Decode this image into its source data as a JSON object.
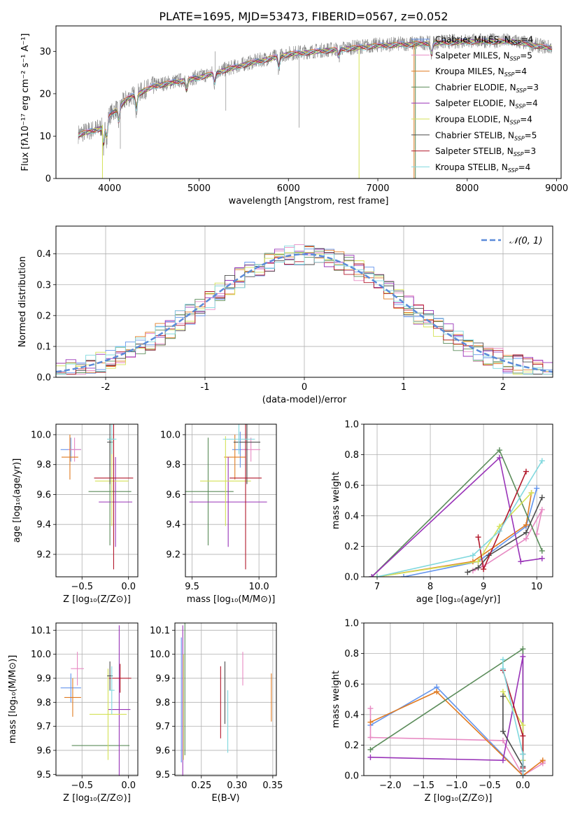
{
  "figure": {
    "title": "PLATE=1695, MJD=53473, FIBERID=0567, z=0.052"
  },
  "series_styles": [
    {
      "name": "Chabrier MILES, N$_{SSP}$=4",
      "color": "#6495ED"
    },
    {
      "name": "Salpeter MILES, N$_{SSP}$=5",
      "color": "#E78AC3"
    },
    {
      "name": "Kroupa MILES, N$_{SSP}$=4",
      "color": "#E07B22"
    },
    {
      "name": "Chabrier ELODIE, N$_{SSP}$=3",
      "color": "#5B8C5A"
    },
    {
      "name": "Salpeter ELODIE, N$_{SSP}$=4",
      "color": "#9933B8"
    },
    {
      "name": "Kroupa ELODIE, N$_{SSP}$=4",
      "color": "#D4E157"
    },
    {
      "name": "Chabrier STELIB, N$_{SSP}$=5",
      "color": "#4D4D4D"
    },
    {
      "name": "Salpeter STELIB, N$_{SSP}$=3",
      "color": "#B2182B"
    },
    {
      "name": "Kroupa STELIB, N$_{SSP}$=4",
      "color": "#7FD8DE"
    }
  ],
  "legend_labels": [
    "Chabrier MILES, N",
    "Salpeter MILES, N",
    "Kroupa MILES, N",
    "Chabrier ELODIE, N",
    "Salpeter ELODIE, N",
    "Kroupa ELODIE, N",
    "Chabrier STELIB, N",
    "Salpeter STELIB, N",
    "Kroupa STELIB, N"
  ],
  "legend_sub": "SSP",
  "legend_counts": [
    "=4",
    "=5",
    "=4",
    "=3",
    "=4",
    "=4",
    "=5",
    "=3",
    "=4"
  ],
  "chart_data": [
    {
      "id": "spectrum",
      "type": "line",
      "xlabel": "wavelength [Angstrom, rest frame]",
      "ylabel": "Flux [fλ10⁻¹⁷ erg cm⁻² s⁻¹ A⁻¹]",
      "xlim": [
        3400,
        9050
      ],
      "ylim": [
        0,
        36
      ],
      "xticks": [
        4000,
        5000,
        6000,
        7000,
        8000,
        9000
      ],
      "yticks": [
        0,
        10,
        20,
        30
      ],
      "legend": "top-right",
      "continuum_knots": {
        "x": [
          3650,
          3900,
          4000,
          4200,
          4500,
          5000,
          5500,
          6000,
          6500,
          7000,
          7500,
          8000,
          8500,
          8900
        ],
        "y": [
          10.5,
          12,
          15,
          19,
          22,
          24,
          27,
          29.5,
          30.5,
          31.5,
          32,
          32.5,
          32.5,
          31
        ]
      }
    },
    {
      "id": "residuals",
      "type": "line",
      "xlabel": "(data-model)/error",
      "ylabel": "Normed distribution",
      "xlim": [
        -2.5,
        2.5
      ],
      "ylim": [
        0,
        0.49
      ],
      "xticks": [
        -2,
        -1,
        0,
        1,
        2
      ],
      "yticks": [
        0.0,
        0.1,
        0.2,
        0.3,
        0.4
      ],
      "grid": true,
      "legend": "top-right",
      "legend_label": "𝒩(0, 1)",
      "reference_curve": "gaussian mean 0 sigma 1",
      "reference_color": "#5B8BD9"
    },
    {
      "id": "age_vs_Z",
      "type": "scatter",
      "xlabel": "Z [log₁₀(Z/Z⊙)]",
      "ylabel": "age [log₁₀(age/yr)]",
      "xlim": [
        -0.78,
        0.1
      ],
      "ylim": [
        9.05,
        10.07
      ],
      "xticks": [
        -0.5,
        0.0
      ],
      "xticklabels": [
        "−0.5",
        "0.0"
      ],
      "yticks": [
        9.2,
        9.4,
        9.6,
        9.8,
        10.0
      ],
      "grid": true,
      "points": [
        {
          "x": -0.62,
          "y": 9.9,
          "xerr": 0.11,
          "yerr": 0.08
        },
        {
          "x": -0.58,
          "y": 9.9,
          "xerr": 0.07,
          "yerr": 0.08
        },
        {
          "x": -0.63,
          "y": 9.85,
          "xerr": 0.09,
          "yerr": 0.15
        },
        {
          "x": -0.2,
          "y": 9.62,
          "xerr": 0.23,
          "yerr": 0.36
        },
        {
          "x": -0.14,
          "y": 9.55,
          "xerr": 0.18,
          "yerr": 0.3
        },
        {
          "x": -0.18,
          "y": 9.69,
          "xerr": 0.18,
          "yerr": 0.3
        },
        {
          "x": -0.2,
          "y": 9.95,
          "xerr": 0.03,
          "yerr": 0.28
        },
        {
          "x": -0.16,
          "y": 9.71,
          "xerr": 0.21,
          "yerr": 0.61
        },
        {
          "x": -0.18,
          "y": 9.97,
          "xerr": 0.05,
          "yerr": 0.1
        }
      ]
    },
    {
      "id": "age_vs_mass",
      "type": "scatter",
      "xlabel": "mass [log₁₀(M/M⊙)]",
      "ylabel": "",
      "xlim": [
        9.45,
        10.13
      ],
      "ylim": [
        9.05,
        10.07
      ],
      "xticks": [
        9.5,
        10.0
      ],
      "xticklabels": [
        "9.5",
        "10.0"
      ],
      "yticks": [
        9.2,
        9.4,
        9.6,
        9.8,
        10.0
      ],
      "grid": true,
      "points": [
        {
          "x": 9.86,
          "y": 9.9,
          "xerr": 0.06,
          "yerr": 0.12
        },
        {
          "x": 9.94,
          "y": 9.9,
          "xerr": 0.07,
          "yerr": 0.08
        },
        {
          "x": 9.82,
          "y": 9.85,
          "xerr": 0.08,
          "yerr": 0.15
        },
        {
          "x": 9.62,
          "y": 9.62,
          "xerr": 0.19,
          "yerr": 0.36
        },
        {
          "x": 9.77,
          "y": 9.55,
          "xerr": 0.29,
          "yerr": 0.3
        },
        {
          "x": 9.75,
          "y": 9.69,
          "xerr": 0.19,
          "yerr": 0.3
        },
        {
          "x": 9.91,
          "y": 9.95,
          "xerr": 0.1,
          "yerr": 0.28
        },
        {
          "x": 9.9,
          "y": 9.71,
          "xerr": 0.12,
          "yerr": 0.61
        },
        {
          "x": 9.85,
          "y": 9.97,
          "xerr": 0.12,
          "yerr": 0.1
        }
      ]
    },
    {
      "id": "weight_vs_age",
      "type": "line",
      "xlabel": "age  [log₁₀(age/yr)]",
      "ylabel": "mass weight",
      "xlim": [
        6.75,
        10.3
      ],
      "ylim": [
        0,
        1.0
      ],
      "xticks": [
        7,
        8,
        9,
        10
      ],
      "yticks": [
        0.0,
        0.2,
        0.4,
        0.6,
        0.8,
        1.0
      ],
      "grid": true,
      "series": [
        {
          "x": [
            7.5,
            8.9,
            9.8,
            10.0
          ],
          "y": [
            0.0,
            0.1,
            0.33,
            0.58
          ]
        },
        {
          "x": [
            8.8,
            9.0,
            9.8,
            10.1,
            10.0
          ],
          "y": [
            0.04,
            0.07,
            0.25,
            0.44,
            0.28
          ]
        },
        {
          "x": [
            7.0,
            8.8,
            9.8,
            9.9
          ],
          "y": [
            0.0,
            0.1,
            0.34,
            0.55
          ]
        },
        {
          "x": [
            6.9,
            9.3,
            10.1
          ],
          "y": [
            0.0,
            0.83,
            0.17
          ]
        },
        {
          "x": [
            6.9,
            9.3,
            9.7,
            10.1
          ],
          "y": [
            0.0,
            0.78,
            0.1,
            0.12
          ]
        },
        {
          "x": [
            7.0,
            8.9,
            9.3,
            9.9
          ],
          "y": [
            0.0,
            0.1,
            0.33,
            0.55
          ]
        },
        {
          "x": [
            8.7,
            8.9,
            9.1,
            9.8,
            10.1
          ],
          "y": [
            0.03,
            0.06,
            0.14,
            0.29,
            0.52
          ]
        },
        {
          "x": [
            8.9,
            9.0,
            9.8
          ],
          "y": [
            0.26,
            0.05,
            0.69
          ]
        },
        {
          "x": [
            7.0,
            8.8,
            9.3,
            10.1
          ],
          "y": [
            0.0,
            0.14,
            0.3,
            0.76
          ]
        }
      ]
    },
    {
      "id": "mass_vs_Z",
      "type": "scatter",
      "xlabel": "Z [log₁₀(Z/Z⊙)]",
      "ylabel": "mass [log₁₀(M/M⊙)]",
      "xlim": [
        -0.78,
        0.1
      ],
      "ylim": [
        9.495,
        10.13
      ],
      "xticks": [
        -0.5,
        0.0
      ],
      "xticklabels": [
        "−0.5",
        "0.0"
      ],
      "yticks": [
        9.5,
        9.6,
        9.7,
        9.8,
        9.9,
        10.0,
        10.1
      ],
      "grid": true,
      "points": [
        {
          "x": -0.62,
          "y": 9.86,
          "xerr": 0.11,
          "yerr": 0.06
        },
        {
          "x": -0.55,
          "y": 9.94,
          "xerr": 0.07,
          "yerr": 0.07
        },
        {
          "x": -0.6,
          "y": 9.82,
          "xerr": 0.09,
          "yerr": 0.08
        },
        {
          "x": -0.3,
          "y": 9.62,
          "xerr": 0.31,
          "yerr": 0.0
        },
        {
          "x": -0.1,
          "y": 9.77,
          "xerr": 0.12,
          "yerr": 0.35
        },
        {
          "x": -0.22,
          "y": 9.75,
          "xerr": 0.2,
          "yerr": 0.19
        },
        {
          "x": -0.2,
          "y": 9.91,
          "xerr": 0.03,
          "yerr": 0.06
        },
        {
          "x": -0.09,
          "y": 9.9,
          "xerr": 0.12,
          "yerr": 0.06
        },
        {
          "x": -0.18,
          "y": 9.85,
          "xerr": 0.03,
          "yerr": 0.1
        }
      ]
    },
    {
      "id": "mass_vs_EBV",
      "type": "scatter",
      "xlabel": "E(B-V)",
      "ylabel": "",
      "xlim": [
        0.213,
        0.355
      ],
      "ylim": [
        9.495,
        10.13
      ],
      "xticks": [
        0.25,
        0.3,
        0.35
      ],
      "xticklabels": [
        "0.25",
        "0.30",
        "0.35"
      ],
      "yticks": [
        9.5,
        9.6,
        9.7,
        9.8,
        9.9,
        10.0,
        10.1
      ],
      "grid": true,
      "points": [
        {
          "x": 0.222,
          "y": 9.81,
          "xerr": 0,
          "yerr": 0.26
        },
        {
          "x": 0.308,
          "y": 9.94,
          "xerr": 0,
          "yerr": 0.07
        },
        {
          "x": 0.348,
          "y": 9.82,
          "xerr": 0,
          "yerr": 0.1
        },
        {
          "x": 0.227,
          "y": 9.88,
          "xerr": 0,
          "yerr": 0.3
        },
        {
          "x": 0.224,
          "y": 9.77,
          "xerr": 0,
          "yerr": 0.35
        },
        {
          "x": 0.225,
          "y": 9.78,
          "xerr": 0,
          "yerr": 0.22
        },
        {
          "x": 0.283,
          "y": 9.84,
          "xerr": 0,
          "yerr": 0.13
        },
        {
          "x": 0.277,
          "y": 9.8,
          "xerr": 0,
          "yerr": 0.15
        },
        {
          "x": 0.287,
          "y": 9.72,
          "xerr": 0,
          "yerr": 0.13
        }
      ]
    },
    {
      "id": "weight_vs_Z",
      "type": "line",
      "xlabel": "Z [log₁₀(Z/Z⊙)]",
      "ylabel": "mass weight",
      "xlim": [
        -2.4,
        0.45
      ],
      "ylim": [
        0,
        1.0
      ],
      "xticks": [
        -2.0,
        -1.5,
        -1.0,
        -0.5,
        0.0
      ],
      "xticklabels": [
        "−2.0",
        "−1.5",
        "−1.0",
        "−0.5",
        "0.0"
      ],
      "yticks": [
        0.0,
        0.2,
        0.4,
        0.6,
        0.8,
        1.0
      ],
      "grid": true,
      "series": [
        {
          "x": [
            -2.3,
            -1.3,
            0.0,
            0.0
          ],
          "y": [
            0.33,
            0.58,
            0.0,
            0.1
          ]
        },
        {
          "x": [
            -2.3,
            -2.3,
            -0.3,
            0.0,
            0.3,
            0.3
          ],
          "y": [
            0.44,
            0.25,
            0.23,
            0.0,
            0.08,
            0.09
          ]
        },
        {
          "x": [
            -2.3,
            -1.3,
            0.0,
            0.3
          ],
          "y": [
            0.35,
            0.55,
            0.0,
            0.1
          ]
        },
        {
          "x": [
            -2.3,
            0.0,
            0.0
          ],
          "y": [
            0.17,
            0.83,
            0.0
          ]
        },
        {
          "x": [
            -2.3,
            -0.3,
            0.0,
            0.0
          ],
          "y": [
            0.12,
            0.1,
            0.78,
            0.0
          ]
        },
        {
          "x": [
            -0.3,
            0.0,
            0.0
          ],
          "y": [
            0.55,
            0.33,
            0.1
          ]
        },
        {
          "x": [
            -0.3,
            -0.3,
            0.0,
            0.0,
            0.0
          ],
          "y": [
            0.52,
            0.29,
            0.06,
            0.03,
            0.14
          ]
        },
        {
          "x": [
            -0.3,
            0.0,
            0.0
          ],
          "y": [
            0.69,
            0.26,
            0.05
          ]
        },
        {
          "x": [
            -0.3,
            -0.3,
            0.0,
            0.0
          ],
          "y": [
            0.76,
            0.7,
            0.14,
            0.0
          ]
        }
      ]
    }
  ]
}
